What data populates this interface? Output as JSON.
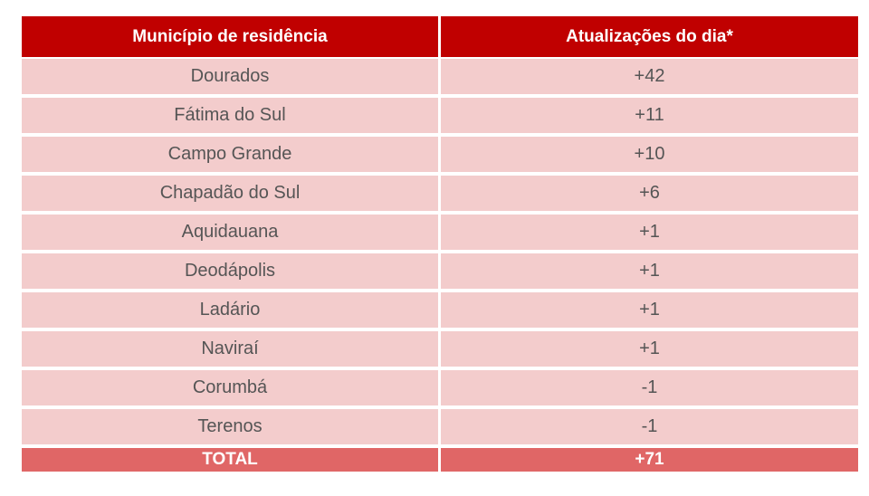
{
  "table": {
    "headers": [
      "Município de residência",
      "Atualizações do dia*"
    ],
    "rows": [
      [
        "Dourados",
        "+42"
      ],
      [
        "Fátima do Sul",
        "+11"
      ],
      [
        "Campo Grande",
        "+10"
      ],
      [
        "Chapadão do Sul",
        "+6"
      ],
      [
        "Aquidauana",
        "+1"
      ],
      [
        "Deodápolis",
        "+1"
      ],
      [
        "Ladário",
        "+1"
      ],
      [
        "Naviraí",
        "+1"
      ],
      [
        "Corumbá",
        "-1"
      ],
      [
        "Terenos",
        "-1"
      ]
    ],
    "total": [
      "TOTAL",
      "+71"
    ]
  },
  "colors": {
    "header_bg": "#c00000",
    "row_bg": "#f3cccc",
    "total_bg": "#e06666"
  }
}
